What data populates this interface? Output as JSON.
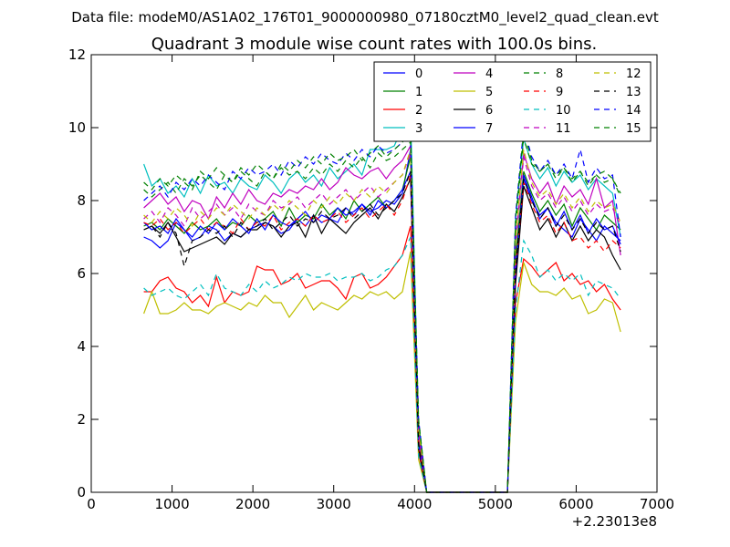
{
  "figure": {
    "suptitle": "Data file: modeM0/AS1A02_176T01_9000000980_07180cztM0_level2_quad_clean.evt"
  },
  "chart_data": {
    "type": "line",
    "title": "Quadrant 3 module wise count rates with 100.0s bins.",
    "xlabel": "",
    "ylabel": "",
    "x_offset_label": "+2.23013e8",
    "xlim": [
      0,
      7000
    ],
    "ylim": [
      0,
      12
    ],
    "xticks": [
      0,
      1000,
      2000,
      3000,
      4000,
      5000,
      6000,
      7000
    ],
    "yticks": [
      0,
      2,
      4,
      6,
      8,
      10,
      12
    ],
    "grid": false,
    "legend_position": "top-right",
    "legend_columns": 4,
    "x": [
      650,
      750,
      850,
      950,
      1050,
      1150,
      1250,
      1350,
      1450,
      1550,
      1650,
      1750,
      1850,
      1950,
      2050,
      2150,
      2250,
      2350,
      2450,
      2550,
      2650,
      2750,
      2850,
      2950,
      3050,
      3150,
      3250,
      3350,
      3450,
      3550,
      3650,
      3750,
      3850,
      3950,
      4050,
      4150,
      4250,
      4350,
      4450,
      4550,
      4650,
      4750,
      4850,
      4950,
      5050,
      5150,
      5250,
      5350,
      5450,
      5550,
      5650,
      5750,
      5850,
      5950,
      6050,
      6150,
      6250,
      6350,
      6450,
      6550
    ],
    "series": [
      {
        "name": "0",
        "color": "#0000ff",
        "dash": "solid",
        "values": [
          7.0,
          6.9,
          6.7,
          6.9,
          7.4,
          7.2,
          6.9,
          7.0,
          7.3,
          7.2,
          6.9,
          7.1,
          7.0,
          7.2,
          7.3,
          7.4,
          7.3,
          7.1,
          7.2,
          7.5,
          7.3,
          7.6,
          7.4,
          7.5,
          7.4,
          7.8,
          7.6,
          7.9,
          7.7,
          7.8,
          8.0,
          7.9,
          8.2,
          9.4,
          1.5,
          0.0,
          0,
          0,
          0,
          0,
          0,
          0,
          0,
          0,
          0,
          0.0,
          6.3,
          8.6,
          8.0,
          7.6,
          7.8,
          7.4,
          7.2,
          7.0,
          7.5,
          7.2,
          6.9,
          7.3,
          7.1,
          6.9
        ]
      },
      {
        "name": "1",
        "color": "#008000",
        "dash": "solid",
        "values": [
          7.3,
          7.4,
          7.2,
          7.5,
          7.3,
          7.1,
          7.4,
          7.2,
          7.3,
          7.5,
          7.2,
          7.4,
          7.3,
          7.6,
          7.4,
          7.5,
          7.7,
          7.3,
          7.8,
          7.4,
          7.6,
          7.5,
          7.9,
          7.6,
          7.8,
          7.5,
          8.0,
          7.7,
          7.9,
          8.1,
          7.8,
          8.0,
          8.3,
          9.2,
          1.4,
          0.0,
          0,
          0,
          0,
          0,
          0,
          0,
          0,
          0,
          0,
          0.0,
          6.4,
          8.8,
          8.2,
          7.7,
          8.0,
          7.6,
          7.9,
          7.3,
          7.8,
          7.5,
          7.2,
          7.6,
          7.4,
          7.2
        ]
      },
      {
        "name": "2",
        "color": "#ff0000",
        "dash": "solid",
        "values": [
          5.5,
          5.5,
          5.8,
          5.9,
          5.6,
          5.5,
          5.2,
          5.4,
          5.1,
          5.9,
          5.2,
          5.5,
          5.4,
          5.5,
          6.2,
          6.1,
          6.1,
          5.7,
          5.8,
          6.0,
          5.6,
          5.7,
          5.8,
          5.8,
          5.6,
          5.3,
          5.9,
          6.0,
          5.6,
          5.7,
          5.9,
          6.2,
          6.5,
          7.3,
          1.1,
          0.0,
          0,
          0,
          0,
          0,
          0,
          0,
          0,
          0,
          0,
          0.0,
          5.2,
          6.4,
          6.2,
          5.9,
          6.1,
          6.3,
          5.8,
          6.0,
          5.7,
          5.8,
          5.5,
          5.7,
          5.3,
          5.0
        ]
      },
      {
        "name": "3",
        "color": "#00bfbf",
        "dash": "solid",
        "values": [
          9.0,
          8.4,
          8.6,
          8.2,
          8.4,
          8.1,
          8.6,
          8.2,
          8.7,
          8.4,
          8.5,
          8.2,
          8.6,
          8.4,
          8.3,
          8.7,
          8.5,
          8.2,
          8.6,
          8.8,
          8.5,
          8.7,
          8.4,
          8.9,
          8.6,
          8.8,
          9.0,
          8.7,
          9.4,
          9.4,
          9.4,
          9.5,
          10.0,
          10.4,
          1.8,
          0.0,
          0,
          0,
          0,
          0,
          0,
          0,
          0,
          0,
          0,
          0.0,
          7.5,
          9.7,
          9.0,
          8.6,
          8.9,
          8.4,
          8.8,
          8.5,
          8.7,
          8.3,
          8.6,
          8.4,
          8.2,
          7.0
        ]
      },
      {
        "name": "4",
        "color": "#bf00bf",
        "dash": "solid",
        "values": [
          7.8,
          8.0,
          8.2,
          7.9,
          8.1,
          7.7,
          8.0,
          7.9,
          7.5,
          8.1,
          7.8,
          8.2,
          7.9,
          8.3,
          8.0,
          7.9,
          8.2,
          8.1,
          8.3,
          8.2,
          8.4,
          8.3,
          8.6,
          8.3,
          8.5,
          8.9,
          8.7,
          8.6,
          8.8,
          8.9,
          8.6,
          8.9,
          9.1,
          9.5,
          1.6,
          0.0,
          0,
          0,
          0,
          0,
          0,
          0,
          0,
          0,
          0,
          0.0,
          6.9,
          9.3,
          8.6,
          8.2,
          8.5,
          7.9,
          8.4,
          8.1,
          8.3,
          7.9,
          8.6,
          7.8,
          8.0,
          6.5
        ]
      },
      {
        "name": "5",
        "color": "#bfbf00",
        "dash": "solid",
        "values": [
          4.9,
          5.5,
          4.9,
          4.9,
          5.0,
          5.2,
          5.0,
          5.0,
          4.9,
          5.1,
          5.2,
          5.1,
          5.0,
          5.2,
          5.1,
          5.4,
          5.2,
          5.2,
          4.8,
          5.1,
          5.4,
          5.0,
          5.2,
          5.1,
          5.0,
          5.2,
          5.4,
          5.3,
          5.5,
          5.4,
          5.5,
          5.3,
          5.5,
          6.6,
          0.9,
          0.0,
          0,
          0,
          0,
          0,
          0,
          0,
          0,
          0,
          0,
          0.0,
          4.7,
          6.3,
          5.7,
          5.5,
          5.5,
          5.4,
          5.6,
          5.3,
          5.4,
          4.9,
          5.0,
          5.3,
          5.2,
          4.4
        ]
      },
      {
        "name": "6",
        "color": "#000000",
        "dash": "solid",
        "values": [
          7.2,
          7.3,
          7.1,
          7.4,
          7.0,
          6.6,
          6.7,
          6.8,
          6.9,
          7.0,
          6.8,
          7.1,
          7.0,
          7.2,
          7.2,
          7.4,
          7.3,
          7.0,
          7.3,
          7.4,
          7.0,
          7.6,
          7.1,
          7.5,
          7.3,
          7.1,
          7.4,
          7.6,
          7.8,
          7.5,
          7.9,
          7.7,
          8.1,
          8.6,
          1.2,
          0.0,
          0,
          0,
          0,
          0,
          0,
          0,
          0,
          0,
          0,
          0.0,
          5.7,
          8.4,
          7.8,
          7.2,
          7.5,
          7.0,
          7.4,
          6.9,
          7.3,
          6.9,
          7.2,
          7.0,
          6.5,
          6.1
        ]
      },
      {
        "name": "7",
        "color": "#0000ff",
        "dash": "solid",
        "values": [
          7.4,
          7.2,
          7.3,
          7.1,
          7.5,
          7.2,
          7.0,
          7.3,
          7.1,
          7.4,
          7.2,
          7.5,
          7.3,
          7.1,
          7.5,
          7.2,
          7.6,
          7.4,
          7.3,
          7.5,
          7.7,
          7.4,
          7.6,
          7.5,
          7.8,
          7.6,
          7.7,
          7.9,
          7.6,
          8.0,
          7.8,
          8.0,
          8.3,
          8.8,
          1.3,
          0.0,
          0,
          0,
          0,
          0,
          0,
          0,
          0,
          0,
          0,
          0.0,
          6.0,
          8.7,
          8.1,
          7.5,
          7.8,
          7.3,
          7.7,
          7.2,
          7.6,
          7.1,
          7.5,
          7.2,
          7.3,
          6.8
        ]
      },
      {
        "name": "8",
        "color": "#008000",
        "dash": "dashed",
        "values": [
          8.3,
          8.1,
          8.3,
          8.5,
          8.2,
          8.6,
          8.4,
          8.7,
          8.5,
          8.3,
          8.7,
          8.5,
          8.8,
          8.6,
          8.4,
          8.8,
          8.6,
          8.9,
          8.7,
          8.8,
          8.6,
          8.9,
          8.7,
          9.0,
          8.8,
          9.1,
          8.9,
          9.2,
          8.9,
          9.3,
          9.1,
          9.2,
          9.4,
          9.6,
          1.9,
          0.0,
          0,
          0,
          0,
          0,
          0,
          0,
          0,
          0,
          0,
          0.0,
          7.3,
          9.7,
          9.0,
          8.8,
          9.0,
          8.7,
          8.9,
          8.6,
          8.8,
          8.5,
          8.7,
          8.8,
          8.6,
          8.2
        ]
      },
      {
        "name": "9",
        "color": "#ff0000",
        "dash": "dashed",
        "values": [
          7.4,
          7.3,
          7.5,
          7.2,
          7.4,
          7.1,
          7.3,
          7.5,
          7.2,
          7.4,
          7.3,
          7.1,
          7.5,
          7.2,
          7.4,
          7.3,
          7.6,
          7.2,
          7.4,
          7.5,
          7.3,
          7.6,
          7.4,
          7.5,
          7.7,
          7.4,
          7.6,
          7.8,
          7.5,
          7.7,
          7.9,
          7.6,
          8.0,
          8.7,
          1.3,
          0.0,
          0,
          0,
          0,
          0,
          0,
          0,
          0,
          0,
          0,
          0.0,
          6.1,
          8.5,
          7.9,
          7.4,
          7.6,
          7.1,
          7.4,
          6.9,
          7.0,
          6.7,
          6.9,
          6.6,
          6.9,
          6.7
        ]
      },
      {
        "name": "10",
        "color": "#00bfbf",
        "dash": "dashed",
        "values": [
          5.6,
          5.4,
          5.5,
          5.6,
          5.4,
          5.3,
          5.5,
          5.7,
          5.4,
          6.0,
          5.6,
          5.5,
          5.4,
          5.7,
          5.5,
          5.8,
          5.6,
          5.7,
          5.9,
          5.8,
          6.0,
          5.9,
          5.9,
          6.0,
          5.8,
          5.9,
          5.9,
          6.0,
          5.8,
          5.9,
          6.1,
          6.2,
          6.5,
          7.0,
          1.0,
          0.0,
          0,
          0,
          0,
          0,
          0,
          0,
          0,
          0,
          0,
          0.0,
          5.0,
          6.9,
          6.5,
          5.9,
          6.1,
          5.8,
          6.0,
          5.8,
          6.0,
          5.4,
          5.8,
          5.7,
          5.6,
          5.3
        ]
      },
      {
        "name": "11",
        "color": "#bf00bf",
        "dash": "dashed",
        "values": [
          7.5,
          7.7,
          7.4,
          7.8,
          7.6,
          7.3,
          7.8,
          7.5,
          7.7,
          7.9,
          7.6,
          7.8,
          7.5,
          7.9,
          7.7,
          7.6,
          8.0,
          7.8,
          7.9,
          8.1,
          7.8,
          8.0,
          8.2,
          7.9,
          8.1,
          8.3,
          8.0,
          8.2,
          8.4,
          8.1,
          8.3,
          8.5,
          8.7,
          9.3,
          1.6,
          0.0,
          0,
          0,
          0,
          0,
          0,
          0,
          0,
          0,
          0,
          0.0,
          6.8,
          9.2,
          8.4,
          8.0,
          8.2,
          7.8,
          8.1,
          7.7,
          8.0,
          7.6,
          7.9,
          7.7,
          7.8,
          7.3
        ]
      },
      {
        "name": "12",
        "color": "#bfbf00",
        "dash": "dashed",
        "values": [
          7.6,
          7.4,
          7.7,
          7.5,
          7.8,
          7.6,
          7.3,
          7.7,
          7.5,
          7.8,
          7.6,
          7.9,
          7.7,
          7.5,
          7.8,
          7.6,
          7.9,
          7.7,
          8.0,
          7.8,
          7.6,
          8.0,
          7.8,
          8.1,
          7.9,
          8.2,
          8.0,
          8.3,
          8.1,
          8.4,
          8.2,
          8.5,
          8.7,
          9.4,
          1.7,
          0.0,
          0,
          0,
          0,
          0,
          0,
          0,
          0,
          0,
          0,
          0.0,
          6.9,
          9.4,
          8.5,
          8.1,
          8.3,
          7.9,
          8.2,
          7.8,
          8.1,
          7.7,
          8.0,
          7.8,
          7.9,
          7.4
        ]
      },
      {
        "name": "13",
        "color": "#000000",
        "dash": "dashed",
        "values": [
          7.2,
          7.3,
          7.0,
          7.4,
          7.1,
          6.2,
          6.9,
          7.0,
          7.2,
          7.1,
          7.3,
          7.0,
          7.4,
          7.2,
          7.3,
          7.5,
          7.2,
          7.4,
          7.6,
          7.3,
          7.5,
          7.4,
          7.7,
          7.5,
          7.6,
          7.8,
          7.5,
          7.7,
          7.9,
          7.6,
          7.8,
          8.0,
          8.2,
          8.8,
          1.3,
          0.0,
          0,
          0,
          0,
          0,
          0,
          0,
          0,
          0,
          0,
          0.0,
          6.1,
          8.6,
          8.0,
          7.5,
          7.8,
          7.3,
          7.6,
          7.2,
          7.5,
          7.1,
          7.4,
          7.2,
          7.3,
          6.6
        ]
      },
      {
        "name": "14",
        "color": "#0000ff",
        "dash": "dashed",
        "values": [
          8.0,
          8.2,
          8.4,
          8.1,
          8.5,
          8.3,
          8.6,
          8.4,
          8.7,
          8.5,
          8.3,
          8.8,
          8.6,
          8.9,
          8.7,
          8.8,
          9.0,
          8.7,
          9.1,
          8.9,
          9.2,
          9.0,
          9.3,
          9.1,
          9.0,
          9.3,
          9.1,
          9.4,
          9.2,
          9.5,
          9.3,
          9.4,
          9.6,
          9.8,
          2.0,
          0.0,
          0,
          0,
          0,
          0,
          0,
          0,
          0,
          0,
          0,
          0.0,
          7.6,
          10.0,
          9.2,
          8.8,
          9.1,
          8.7,
          9.0,
          8.6,
          9.4,
          8.5,
          8.9,
          8.6,
          8.7,
          7.0
        ]
      },
      {
        "name": "15",
        "color": "#008000",
        "dash": "dashed",
        "values": [
          8.5,
          8.3,
          8.6,
          8.4,
          8.7,
          8.5,
          8.3,
          8.8,
          8.6,
          8.9,
          8.7,
          8.5,
          8.9,
          8.7,
          9.0,
          8.8,
          8.6,
          9.0,
          8.8,
          9.1,
          8.9,
          9.2,
          9.0,
          9.3,
          9.1,
          9.2,
          9.4,
          9.1,
          9.3,
          9.5,
          9.2,
          9.4,
          9.6,
          9.9,
          2.0,
          0.0,
          0,
          0,
          0,
          0,
          0,
          0,
          0,
          0,
          0,
          0.0,
          7.5,
          9.9,
          9.1,
          8.8,
          9.0,
          8.6,
          8.9,
          8.5,
          8.8,
          8.4,
          8.7,
          8.5,
          8.6,
          8.1
        ]
      }
    ]
  }
}
